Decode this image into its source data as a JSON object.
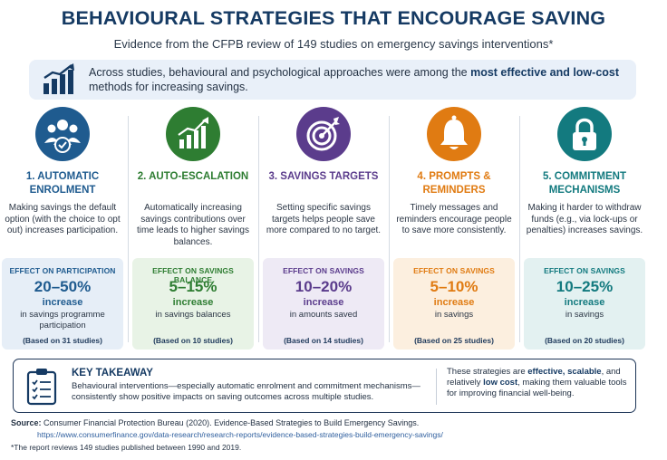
{
  "header": {
    "title": "BEHAVIOURAL STRATEGIES THAT ENCOURAGE SAVING",
    "subtitle": "Evidence from the CFPB review of 149 studies on emergency savings interventions*"
  },
  "intro": {
    "text_before": "Across studies, behavioural and psychological approaches were among the ",
    "text_bold": "most effective and low-cost",
    "text_after": " methods for increasing savings.",
    "icon": "bar-chart-growth-icon"
  },
  "strategies": [
    {
      "heading": "1. AUTOMATIC ENROLMENT",
      "description": "Making savings the default option (with the choice to opt out) increases participation.",
      "effect_label": "EFFECT ON PARTICIPATION",
      "value": "20–50%",
      "increase_label": "increase",
      "measure": "in savings programme participation",
      "based_on": "(Based on 31 studies)",
      "icon": "group-check-icon",
      "color": "#1f5b8f",
      "box_color": "#e6eef7"
    },
    {
      "heading": "2. AUTO-ESCALATION",
      "description": "Automatically increasing savings contributions over time leads to higher savings balances.",
      "effect_label": "EFFECT ON SAVINGS BALANCE",
      "value": "5–15%",
      "increase_label": "increase",
      "measure": "in savings balances",
      "based_on": "(Based on 10 studies)",
      "icon": "rising-bars-icon",
      "color": "#2e7d32",
      "box_color": "#e8f3e6"
    },
    {
      "heading": "3. SAVINGS TARGETS",
      "description": "Setting specific savings targets helps people save more compared to no target.",
      "effect_label": "EFFECT ON SAVINGS",
      "value": "10–20%",
      "increase_label": "increase",
      "measure": "in amounts saved",
      "based_on": "(Based on 14 studies)",
      "icon": "target-icon",
      "color": "#5b3c8c",
      "box_color": "#eeeaf5"
    },
    {
      "heading": "4. PROMPTS & REMINDERS",
      "description": "Timely messages and reminders encourage people to save more consistently.",
      "effect_label": "EFFECT ON SAVINGS",
      "value": "5–10%",
      "increase_label": "increase",
      "measure": "in savings",
      "based_on": "(Based on 25 studies)",
      "icon": "bell-icon",
      "color": "#e07b12",
      "box_color": "#fcefdf"
    },
    {
      "heading": "5. COMMITMENT MECHANISMS",
      "description": "Making it harder to withdraw funds (e.g., via lock-ups or penalties) increases savings.",
      "effect_label": "EFFECT ON SAVINGS",
      "value": "10–25%",
      "increase_label": "increase",
      "measure": "in savings",
      "based_on": "(Based on 20 studies)",
      "icon": "padlock-icon",
      "color": "#137a7f",
      "box_color": "#e3f1f1"
    }
  ],
  "takeaway": {
    "title": "KEY TAKEAWAY",
    "text": "Behavioural interventions—especially automatic enrolment and commitment mechanisms—consistently show positive impacts on saving outcomes across multiple studies.",
    "right_1": "These strategies are ",
    "right_b1": "effective, scalable",
    "right_2": ", and relatively ",
    "right_b2": "low cost",
    "right_3": ", making them valuable tools for improving financial well-being.",
    "icon": "checklist-clipboard-icon"
  },
  "source": {
    "label": "Source:",
    "text": " Consumer Financial Protection Bureau (2020). Evidence-Based Strategies to Build Emergency Savings.",
    "url": "https://www.consumerfinance.gov/data-research/research-reports/evidence-based-strategies-build-emergency-savings/",
    "footnote": "*The report reviews 149 studies published between 1990 and 2019."
  }
}
